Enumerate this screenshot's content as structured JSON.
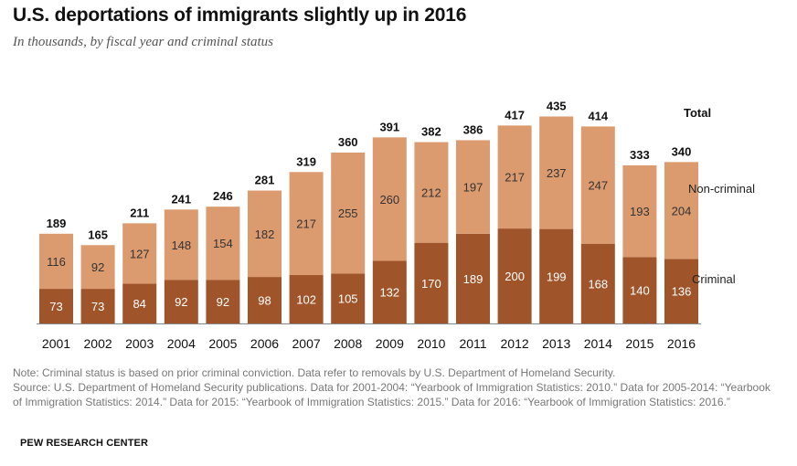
{
  "title": "U.S. deportations of immigrants slightly up in 2016",
  "subtitle": "In thousands, by fiscal year and criminal status",
  "chart_data": {
    "type": "bar",
    "stacked": true,
    "categories": [
      "2001",
      "2002",
      "2003",
      "2004",
      "2005",
      "2006",
      "2007",
      "2008",
      "2009",
      "2010",
      "2011",
      "2012",
      "2013",
      "2014",
      "2015",
      "2016"
    ],
    "series": [
      {
        "name": "Criminal",
        "color": "#a0542a",
        "values": [
          73,
          73,
          84,
          92,
          92,
          98,
          102,
          105,
          132,
          170,
          189,
          200,
          199,
          168,
          140,
          136
        ]
      },
      {
        "name": "Non-criminal",
        "color": "#db9b6f",
        "values": [
          116,
          92,
          127,
          148,
          154,
          182,
          217,
          255,
          260,
          212,
          197,
          217,
          237,
          247,
          193,
          204
        ]
      }
    ],
    "totals": [
      189,
      165,
      211,
      241,
      246,
      281,
      319,
      360,
      391,
      382,
      386,
      417,
      435,
      414,
      333,
      340
    ],
    "totals_label": "Total",
    "legend": "right",
    "grid": false,
    "ylim": [
      0,
      435
    ]
  },
  "note": "Note: Criminal status is based on prior criminal conviction. Data refer to removals by U.S. Department of Homeland Security.",
  "source": "Source: U.S. Department of Homeland Security publications. Data for 2001-2004: “Yearbook of Immigration Statistics: 2010.” Data for 2005-2014: “Yearbook of Immigration Statistics: 2014.” Data for 2015: “Yearbook of Immigration Statistics: 2015.” Data for 2016: “Yearbook of Immigration Statistics: 2016.”",
  "brand": "PEW RESEARCH CENTER"
}
